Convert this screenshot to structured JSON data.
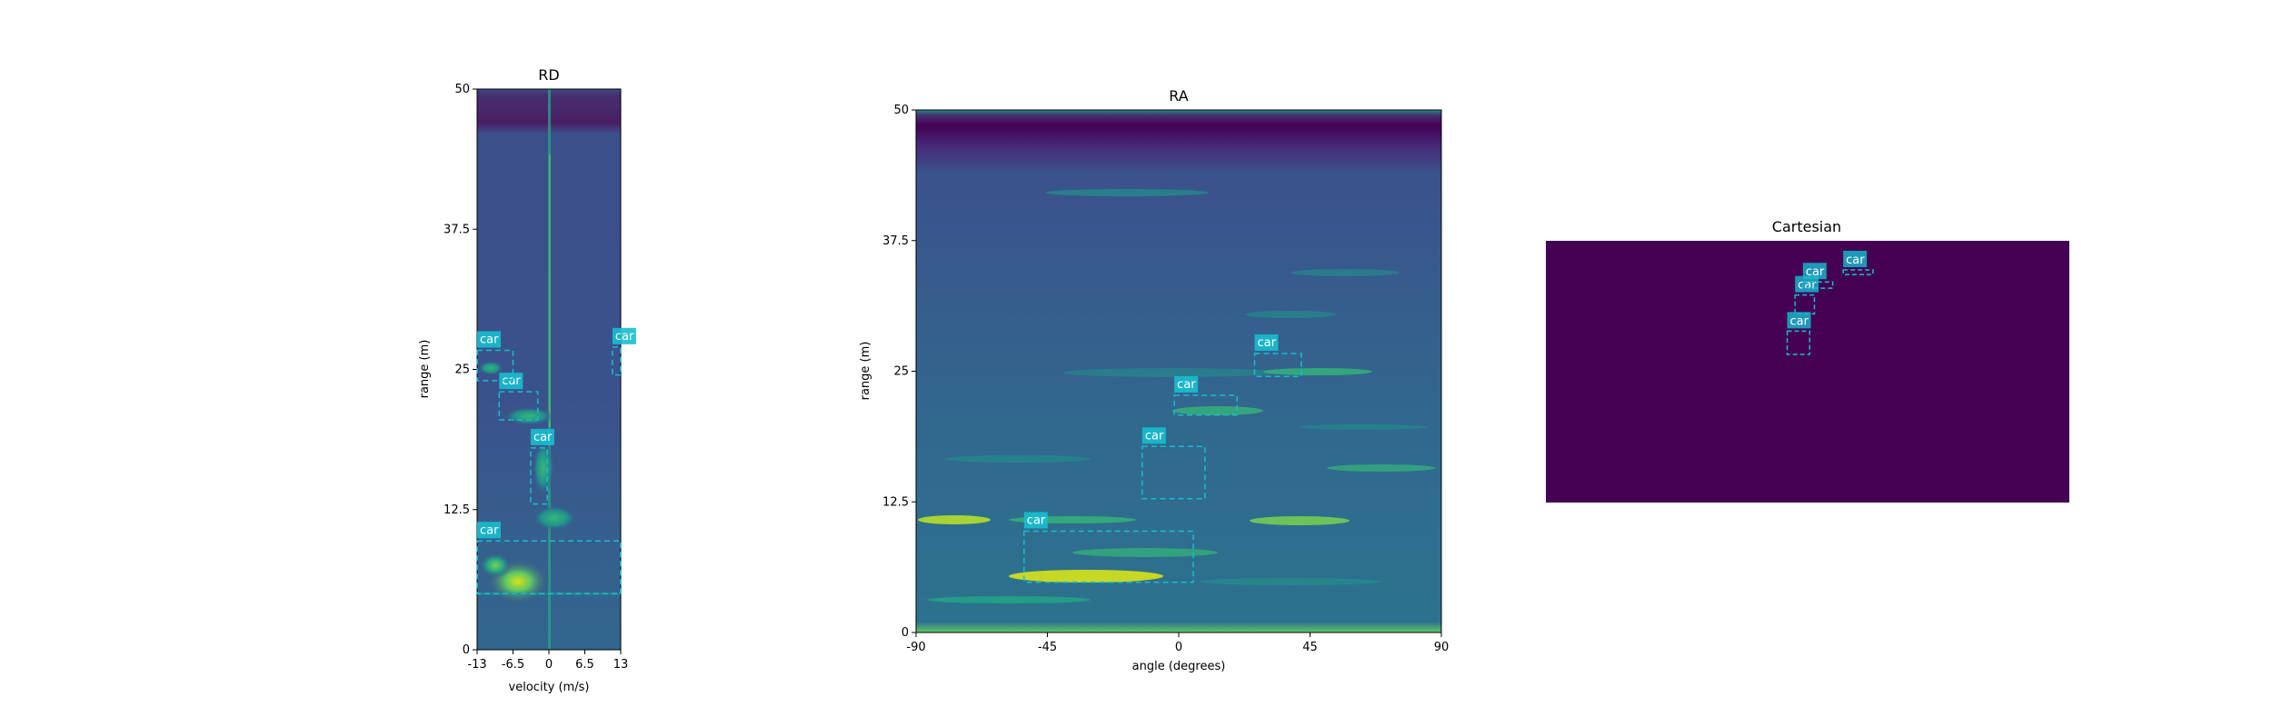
{
  "colors": {
    "viridis_low": "#3b4f8a",
    "viridis_dark": "#440154",
    "box": "#17becf",
    "label_bg": "#17becf",
    "label_text": "#ffffff"
  },
  "chart_data": [
    {
      "type": "heatmap",
      "title": "RD",
      "xlabel": "velocity (m/s)",
      "ylabel": "range (m)",
      "xlim": [
        -13,
        13
      ],
      "ylim": [
        0,
        50
      ],
      "x_ticks": [
        "-13",
        "-6.5",
        "0",
        "6.5",
        "13"
      ],
      "y_ticks": [
        "0",
        "12.5",
        "25",
        "37.5",
        "50"
      ],
      "boxes": [
        {
          "label": "car",
          "x": [
            -13,
            13
          ],
          "y": [
            5,
            9.7
          ]
        },
        {
          "label": "car",
          "x": [
            -3.3,
            -0.3
          ],
          "y": [
            13,
            18
          ]
        },
        {
          "label": "car",
          "x": [
            -9,
            -2
          ],
          "y": [
            20.5,
            23
          ]
        },
        {
          "label": "car",
          "x": [
            -13,
            -6.5
          ],
          "y": [
            24,
            26.7
          ]
        },
        {
          "label": "car",
          "x": [
            11.5,
            13
          ],
          "y": [
            24.5,
            27
          ]
        }
      ]
    },
    {
      "type": "heatmap",
      "title": "RA",
      "xlabel": "angle (degrees)",
      "ylabel": "range (m)",
      "xlim": [
        -90,
        90
      ],
      "ylim": [
        0,
        50
      ],
      "x_ticks": [
        "-90",
        "-45",
        "0",
        "45",
        "90"
      ],
      "y_ticks": [
        "0",
        "12.5",
        "25",
        "37.5",
        "50"
      ],
      "boxes": [
        {
          "label": "car",
          "x": [
            -53,
            5
          ],
          "y": [
            4.8,
            9.7
          ]
        },
        {
          "label": "car",
          "x": [
            -12.5,
            9
          ],
          "y": [
            12.8,
            17.8
          ]
        },
        {
          "label": "car",
          "x": [
            -1.5,
            20
          ],
          "y": [
            20.8,
            22.7
          ]
        },
        {
          "label": "car",
          "x": [
            26,
            42
          ],
          "y": [
            24.5,
            26.7
          ]
        }
      ]
    },
    {
      "type": "heatmap",
      "title": "Cartesian",
      "xlabel": "",
      "ylabel": "",
      "boxes": [
        {
          "label": "car",
          "x": [
            0.461,
            0.504
          ],
          "y": [
            0.566,
            0.655
          ]
        },
        {
          "label": "car",
          "x": [
            0.476,
            0.513
          ],
          "y": [
            0.721,
            0.793
          ]
        },
        {
          "label": "car",
          "x": [
            0.491,
            0.548
          ],
          "y": [
            0.819,
            0.843
          ]
        },
        {
          "label": "car",
          "x": [
            0.568,
            0.625
          ],
          "y": [
            0.889,
            0.871
          ]
        }
      ]
    }
  ]
}
